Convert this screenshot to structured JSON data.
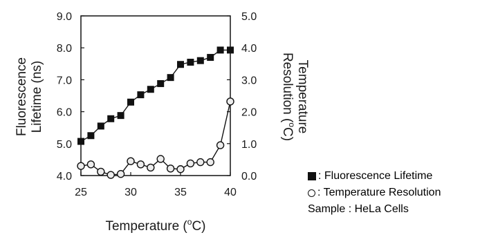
{
  "chart_data": {
    "type": "line",
    "x": [
      25,
      26,
      27,
      28,
      29,
      30,
      31,
      32,
      33,
      34,
      35,
      36,
      37,
      38,
      39,
      40
    ],
    "series": [
      {
        "name": "Fluorescence Lifetime",
        "axis": "left",
        "marker": "filled-square",
        "color": "#111111",
        "values": [
          5.07,
          5.25,
          5.55,
          5.78,
          5.88,
          6.3,
          6.53,
          6.7,
          6.88,
          7.07,
          7.48,
          7.55,
          7.6,
          7.7,
          7.93,
          7.93
        ]
      },
      {
        "name": "Temperature Resolution",
        "axis": "right",
        "marker": "open-circle",
        "color": "#111111",
        "values": [
          0.3,
          0.35,
          0.12,
          0.02,
          0.05,
          0.45,
          0.35,
          0.25,
          0.52,
          0.22,
          0.2,
          0.38,
          0.42,
          0.42,
          0.95,
          2.32
        ]
      }
    ],
    "xlim": [
      25,
      40
    ],
    "xticks": [
      25,
      30,
      35,
      40
    ],
    "xlabel_main": "Temperature (",
    "xlabel_sup": "o",
    "xlabel_tail": "C)",
    "y_left": {
      "lim": [
        4.0,
        9.0
      ],
      "ticks": [
        "4.0",
        "5.0",
        "6.0",
        "7.0",
        "8.0",
        "9.0"
      ],
      "label_line1": "Fluorescence",
      "label_line2": "Lifetime (ns)"
    },
    "y_right": {
      "lim": [
        0.0,
        5.0
      ],
      "ticks": [
        "0.0",
        "1.0",
        "2.0",
        "3.0",
        "4.0",
        "5.0"
      ],
      "label_line1": "Temperature",
      "label_line2_main": "Resolution (",
      "label_line2_sup": "o",
      "label_line2_tail": "C)"
    },
    "grid": false,
    "legend_position": "bottom-right"
  },
  "legend": {
    "lifetime_label": ": Fluorescence Lifetime",
    "resolution_label": ": Temperature Resolution",
    "sample_label": "Sample : HeLa Cells"
  }
}
